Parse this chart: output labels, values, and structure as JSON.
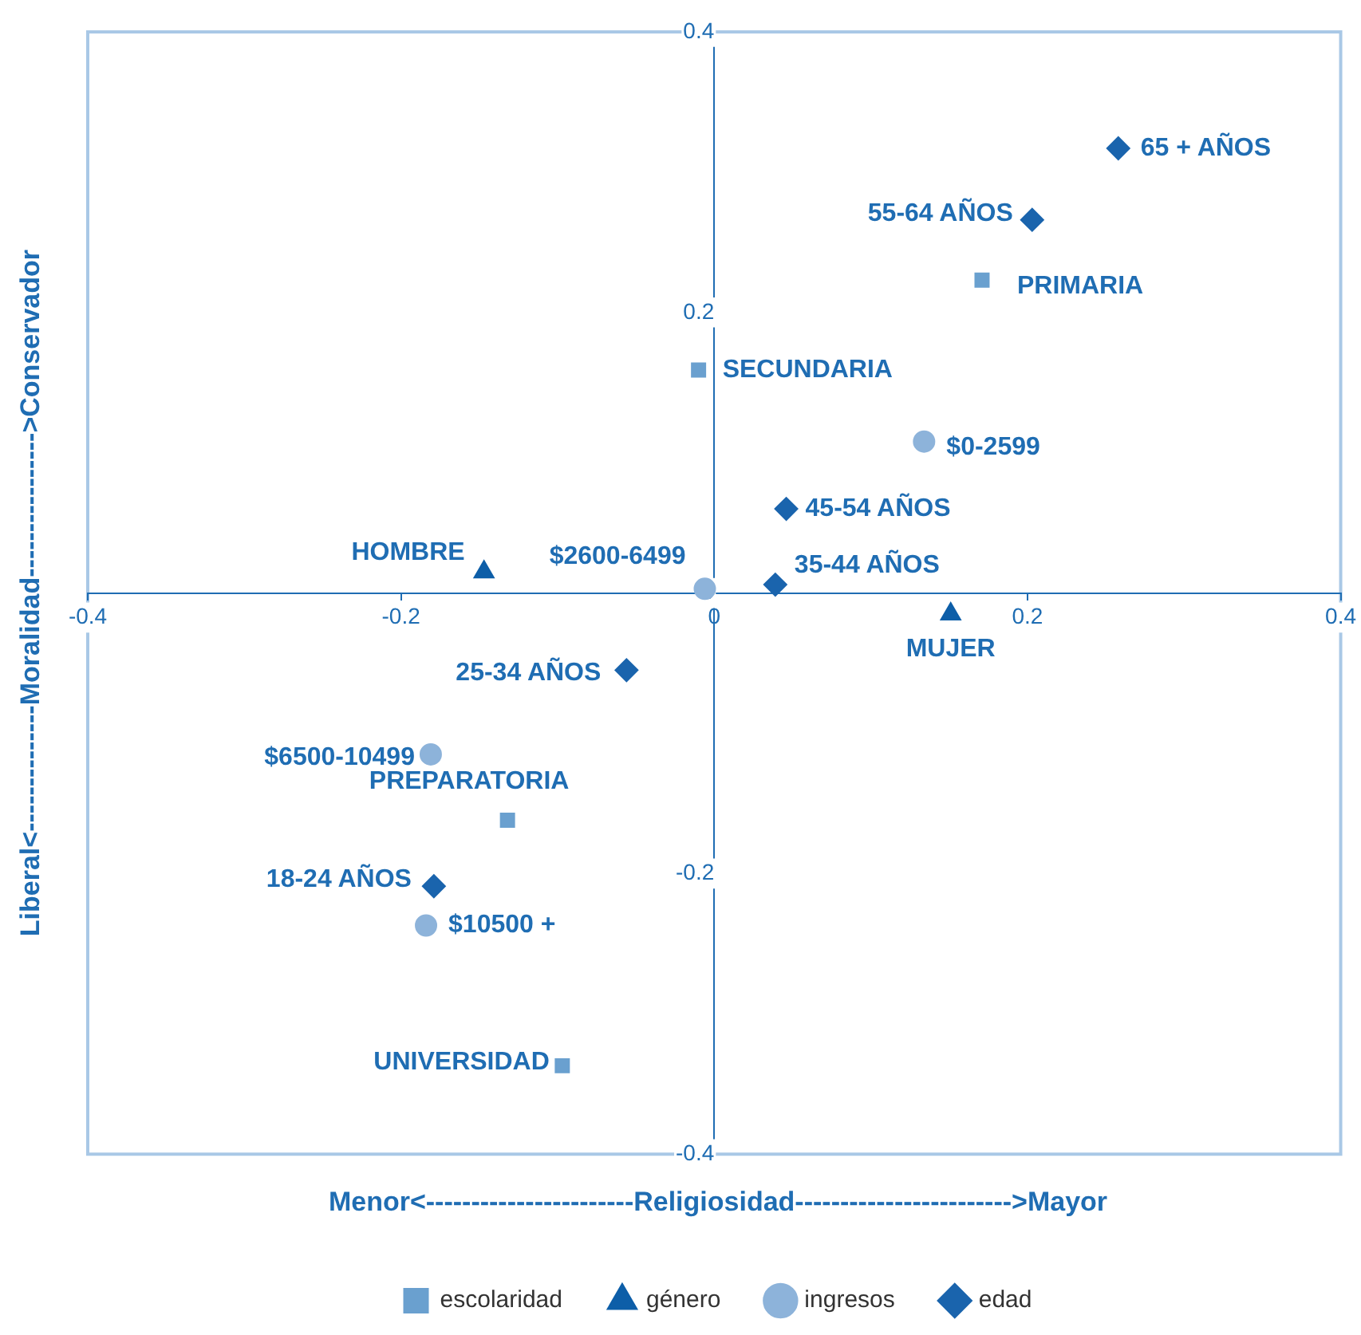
{
  "chart_data": {
    "type": "scatter",
    "xlabel": "Menor<-----------------------Religiosidad------------------------>Mayor",
    "ylabel": "Liberal<--------------Moralidad---------------->Conservador",
    "xlim": [
      -0.4,
      0.4
    ],
    "xticks": [
      -0.4,
      -0.2,
      0,
      0.2,
      0.4
    ],
    "ylim": [
      -0.4,
      0.4
    ],
    "yticks": [
      -0.4,
      -0.2,
      0,
      0.2,
      0.4
    ],
    "grid": false,
    "legend": "bottom",
    "series": [
      {
        "name": "escolaridad",
        "color": "#6aa0cf",
        "marker": "square",
        "x": [
          0.171,
          -0.01,
          -0.132,
          -0.097
        ],
        "values": [
          0.223,
          0.159,
          -0.162,
          -0.337
        ]
      },
      {
        "name": "género",
        "color": "#0d5ea8",
        "marker": "triangle",
        "x": [
          -0.147,
          0.151
        ],
        "values": [
          0.015,
          -0.015
        ]
      },
      {
        "name": "ingresos",
        "color": "#8db3da",
        "marker": "circle",
        "x": [
          0.134,
          -0.006,
          -0.181,
          -0.184
        ],
        "values": [
          0.108,
          0.003,
          -0.115,
          -0.237
        ]
      },
      {
        "name": "edad",
        "color": "#1a64ad",
        "marker": "diamond",
        "x": [
          0.258,
          0.203,
          0.046,
          0.039,
          -0.056,
          -0.179
        ],
        "values": [
          0.317,
          0.266,
          0.06,
          0.006,
          -0.055,
          -0.209
        ]
      }
    ],
    "annotations": [
      {
        "text": "PRIMARIA",
        "x": 0.171,
        "y": 0.223
      },
      {
        "text": "SECUNDARIA",
        "x": -0.01,
        "y": 0.159
      },
      {
        "text": "PREPARATORIA",
        "x": -0.132,
        "y": -0.162
      },
      {
        "text": "UNIVERSIDAD",
        "x": -0.097,
        "y": -0.337
      },
      {
        "text": "HOMBRE",
        "x": -0.147,
        "y": 0.015
      },
      {
        "text": "MUJER",
        "x": 0.151,
        "y": -0.015
      },
      {
        "text": "$0-2599",
        "x": 0.134,
        "y": 0.108
      },
      {
        "text": "$2600-6499",
        "x": -0.006,
        "y": 0.003
      },
      {
        "text": "$6500-10499",
        "x": -0.181,
        "y": -0.115
      },
      {
        "text": "$10500 +",
        "x": -0.184,
        "y": -0.237
      },
      {
        "text": "65 + AÑOS",
        "x": 0.258,
        "y": 0.317
      },
      {
        "text": "55-64 AÑOS",
        "x": 0.203,
        "y": 0.266
      },
      {
        "text": "45-54 AÑOS",
        "x": 0.046,
        "y": 0.06
      },
      {
        "text": "35-44 AÑOS",
        "x": 0.039,
        "y": 0.006
      },
      {
        "text": "25-34 AÑOS",
        "x": -0.056,
        "y": -0.055
      },
      {
        "text": "18-24 AÑOS",
        "x": -0.179,
        "y": -0.209
      }
    ]
  }
}
